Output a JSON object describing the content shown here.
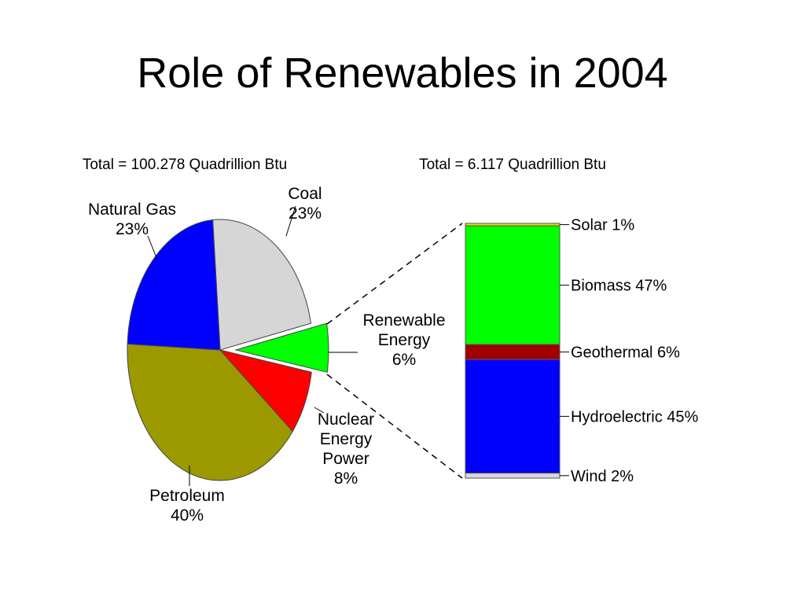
{
  "slide": {
    "title": "Role of Renewables in 2004"
  },
  "colors": {
    "natural_gas": "#0000ff",
    "coal": "#d6d6d6",
    "renewable": "#00ff00",
    "nuclear": "#ff0000",
    "petroleum": "#9c9900",
    "solar": "#e8e000",
    "biomass": "#00ff00",
    "geothermal": "#a00000",
    "hydroelectric": "#0000ff",
    "wind": "#d6d6d6"
  },
  "chart_data": [
    {
      "type": "pie",
      "title": "Total = 100.278 Quadrillion Btu",
      "slices": [
        {
          "label": "Coal",
          "lines": [
            "Coal"
          ],
          "value": 23,
          "value_label": "23%",
          "color": "#d6d6d6"
        },
        {
          "label": "Renewable Energy",
          "lines": [
            "Renewable",
            "Energy"
          ],
          "value": 6,
          "value_label": "6%",
          "color": "#00ff00",
          "exploded": true
        },
        {
          "label": "Nuclear Energy Power",
          "lines": [
            "Nuclear",
            "Energy",
            "Power"
          ],
          "value": 8,
          "value_label": "8%",
          "color": "#ff0000"
        },
        {
          "label": "Petroleum",
          "lines": [
            "Petroleum"
          ],
          "value": 40,
          "value_label": "40%",
          "color": "#9c9900"
        },
        {
          "label": "Natural Gas",
          "lines": [
            "Natural Gas"
          ],
          "value": 23,
          "value_label": "23%",
          "color": "#0000ff"
        }
      ]
    },
    {
      "type": "bar",
      "stacked": true,
      "title": "Total = 6.117 Quadrillion Btu",
      "segments": [
        {
          "label": "Solar",
          "value": 1,
          "value_label": "1%",
          "color": "#e8e000"
        },
        {
          "label": "Biomass",
          "value": 47,
          "value_label": "47%",
          "color": "#00ff00"
        },
        {
          "label": "Geothermal",
          "value": 6,
          "value_label": "6%",
          "color": "#a00000"
        },
        {
          "label": "Hydroelectric",
          "value": 45,
          "value_label": "45%",
          "color": "#0000ff"
        },
        {
          "label": "Wind",
          "value": 2,
          "value_label": "2%",
          "color": "#d6d6d6"
        }
      ]
    }
  ]
}
